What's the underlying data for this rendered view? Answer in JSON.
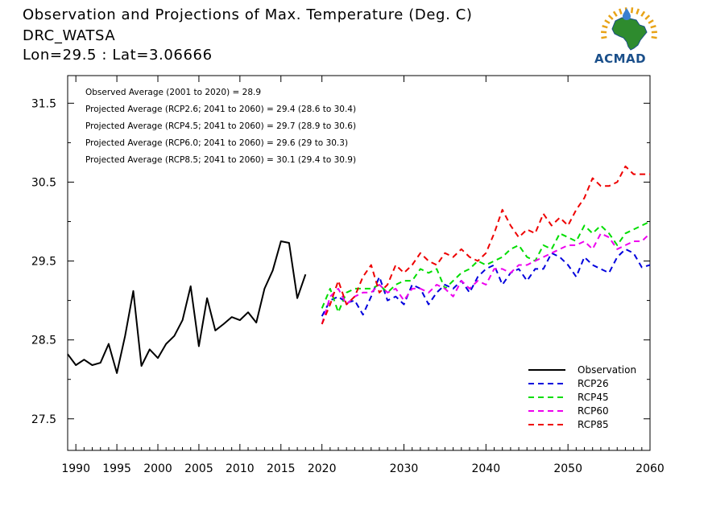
{
  "title_lines": [
    "Observation and Projections of Max. Temperature (Deg. C)",
    "DRC_WATSA",
    "Lon=29.5 : Lat=3.06666"
  ],
  "logo": {
    "text": "ACMAD",
    "color": "#1a4f8a",
    "accent": "#e8a317"
  },
  "chart_data": {
    "type": "line",
    "xlim": [
      1989,
      2060
    ],
    "ylim": [
      27.1,
      31.85
    ],
    "xticks": [
      {
        "value": 1990,
        "label": "1990"
      },
      {
        "value": 1995,
        "label": "1995"
      },
      {
        "value": 2000,
        "label": "2000"
      },
      {
        "value": 2005,
        "label": "2005"
      },
      {
        "value": 2010,
        "label": "2010"
      },
      {
        "value": 2015,
        "label": "2015"
      },
      {
        "value": 2020,
        "label": "2020"
      },
      {
        "value": 2030,
        "label": "2030"
      },
      {
        "value": 2040,
        "label": "2040"
      },
      {
        "value": 2050,
        "label": "2050"
      },
      {
        "value": 2060,
        "label": "2060"
      }
    ],
    "yticks": [
      {
        "value": 27.5,
        "label": "27.5"
      },
      {
        "value": 28.5,
        "label": "28.5"
      },
      {
        "value": 29.5,
        "label": "29.5"
      },
      {
        "value": 30.5,
        "label": "30.5"
      },
      {
        "value": 31.5,
        "label": "31.5"
      }
    ],
    "annotations": [
      "Observed Average (2001 to 2020) = 28.9",
      "Projected Average (RCP2.6; 2041 to 2060) = 29.4 (28.6 to 30.4)",
      "Projected Average (RCP4.5; 2041 to 2060) = 29.7 (28.9 to 30.6)",
      "Projected Average (RCP6.0; 2041 to 2060) = 29.6 (29 to 30.3)",
      "Projected Average (RCP8.5; 2041 to 2060) = 30.1 (29.4 to 30.9)"
    ],
    "legend_position": "bottom-right",
    "series": [
      {
        "name": "Observation",
        "color": "#000000",
        "dashed": false,
        "x": [
          1989,
          1990,
          1991,
          1992,
          1993,
          1994,
          1995,
          1996,
          1997,
          1998,
          1999,
          2000,
          2001,
          2002,
          2003,
          2004,
          2005,
          2006,
          2007,
          2008,
          2009,
          2010,
          2011,
          2012,
          2013,
          2014,
          2015,
          2016,
          2017,
          2018,
          2019
        ],
        "y": [
          28.32,
          28.18,
          28.25,
          28.18,
          28.21,
          28.45,
          28.08,
          28.55,
          29.12,
          28.17,
          28.38,
          28.27,
          28.45,
          28.55,
          28.75,
          29.18,
          28.42,
          29.03,
          28.62,
          28.7,
          28.79,
          28.75,
          28.85,
          28.72,
          29.15,
          29.38,
          29.75,
          29.73,
          29.03,
          29.33,
          null
        ]
      },
      {
        "name": "RCP26",
        "color": "#0000dd",
        "dashed": true,
        "x": [
          2020,
          2021,
          2022,
          2023,
          2024,
          2025,
          2026,
          2027,
          2028,
          2029,
          2030,
          2031,
          2032,
          2033,
          2034,
          2035,
          2036,
          2037,
          2038,
          2039,
          2040,
          2041,
          2042,
          2043,
          2044,
          2045,
          2046,
          2047,
          2048,
          2049,
          2050,
          2051,
          2052,
          2053,
          2054,
          2055,
          2056,
          2057,
          2058,
          2059,
          2060
        ],
        "y": [
          28.8,
          29.0,
          29.05,
          28.97,
          29.0,
          28.82,
          29.05,
          29.3,
          29.0,
          29.05,
          28.95,
          29.2,
          29.15,
          28.95,
          29.1,
          29.2,
          29.15,
          29.25,
          29.1,
          29.3,
          29.4,
          29.45,
          29.2,
          29.35,
          29.4,
          29.25,
          29.4,
          29.4,
          29.6,
          29.55,
          29.45,
          29.3,
          29.55,
          29.45,
          29.4,
          29.35,
          29.55,
          29.65,
          29.6,
          29.42,
          29.45
        ]
      },
      {
        "name": "RCP45",
        "color": "#00dd00",
        "dashed": true,
        "x": [
          2020,
          2021,
          2022,
          2023,
          2024,
          2025,
          2026,
          2027,
          2028,
          2029,
          2030,
          2031,
          2032,
          2033,
          2034,
          2035,
          2036,
          2037,
          2038,
          2039,
          2040,
          2041,
          2042,
          2043,
          2044,
          2045,
          2046,
          2047,
          2048,
          2049,
          2050,
          2051,
          2052,
          2053,
          2054,
          2055,
          2056,
          2057,
          2058,
          2059,
          2060
        ],
        "y": [
          28.9,
          29.15,
          28.85,
          29.1,
          29.15,
          29.15,
          29.15,
          29.2,
          29.1,
          29.2,
          29.25,
          29.25,
          29.4,
          29.35,
          29.4,
          29.15,
          29.25,
          29.35,
          29.4,
          29.5,
          29.45,
          29.5,
          29.55,
          29.65,
          29.7,
          29.55,
          29.5,
          29.7,
          29.65,
          29.85,
          29.8,
          29.75,
          29.95,
          29.85,
          29.95,
          29.85,
          29.7,
          29.85,
          29.9,
          29.95,
          30.0
        ]
      },
      {
        "name": "RCP60",
        "color": "#ee00ee",
        "dashed": true,
        "x": [
          2020,
          2021,
          2022,
          2023,
          2024,
          2025,
          2026,
          2027,
          2028,
          2029,
          2030,
          2031,
          2032,
          2033,
          2034,
          2035,
          2036,
          2037,
          2038,
          2039,
          2040,
          2041,
          2042,
          2043,
          2044,
          2045,
          2046,
          2047,
          2048,
          2049,
          2050,
          2051,
          2052,
          2053,
          2054,
          2055,
          2056,
          2057,
          2058,
          2059,
          2060
        ],
        "y": [
          28.7,
          29.05,
          29.15,
          28.95,
          29.05,
          29.1,
          29.1,
          29.2,
          29.1,
          29.15,
          29.0,
          29.15,
          29.15,
          29.1,
          29.2,
          29.15,
          29.05,
          29.25,
          29.15,
          29.25,
          29.2,
          29.4,
          29.4,
          29.35,
          29.45,
          29.45,
          29.5,
          29.55,
          29.6,
          29.65,
          29.7,
          29.7,
          29.75,
          29.65,
          29.85,
          29.8,
          29.65,
          29.7,
          29.75,
          29.75,
          29.85
        ]
      },
      {
        "name": "RCP85",
        "color": "#ee0000",
        "dashed": true,
        "x": [
          2020,
          2021,
          2022,
          2023,
          2024,
          2025,
          2026,
          2027,
          2028,
          2029,
          2030,
          2031,
          2032,
          2033,
          2034,
          2035,
          2036,
          2037,
          2038,
          2039,
          2040,
          2041,
          2042,
          2043,
          2044,
          2045,
          2046,
          2047,
          2048,
          2049,
          2050,
          2051,
          2052,
          2053,
          2054,
          2055,
          2056,
          2057,
          2058,
          2059,
          2060
        ],
        "y": [
          28.7,
          28.95,
          29.25,
          28.95,
          29.05,
          29.3,
          29.45,
          29.1,
          29.2,
          29.45,
          29.35,
          29.45,
          29.6,
          29.5,
          29.45,
          29.6,
          29.55,
          29.65,
          29.55,
          29.5,
          29.6,
          29.85,
          30.15,
          29.95,
          29.8,
          29.9,
          29.85,
          30.1,
          29.95,
          30.05,
          29.95,
          30.15,
          30.3,
          30.55,
          30.45,
          30.45,
          30.5,
          30.7,
          30.6,
          30.6,
          30.6
        ]
      }
    ]
  }
}
